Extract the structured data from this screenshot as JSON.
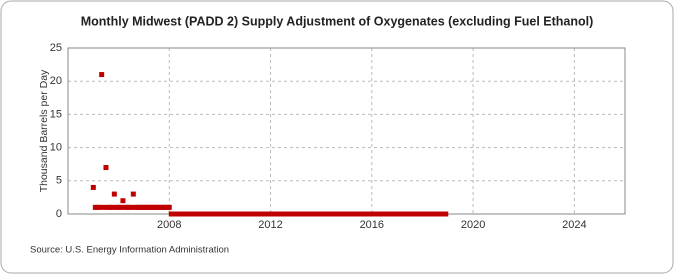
{
  "chart_data": {
    "type": "scatter",
    "title": "Monthly Midwest (PADD 2) Supply Adjustment of Oxygenates (excluding Fuel Ethanol)",
    "y_label": "Thousand Barrels per Day",
    "source": "Source: U.S. Energy Information Administration",
    "color": "#c00000",
    "grid": true,
    "xlim": [
      2004,
      2026
    ],
    "xticks": [
      2008,
      2012,
      2016,
      2020,
      2024
    ],
    "ylim": [
      0,
      25
    ],
    "yticks": [
      0,
      5,
      10,
      15,
      20,
      25
    ],
    "x": [
      2005,
      2005.08,
      2005.17,
      2005.25,
      2005.33,
      2005.42,
      2005.5,
      2005.58,
      2005.67,
      2005.75,
      2005.83,
      2005.92,
      2006,
      2006.08,
      2006.17,
      2006.25,
      2006.33,
      2006.42,
      2006.5,
      2006.58,
      2006.67,
      2006.75,
      2006.83,
      2006.92,
      2007,
      2007.08,
      2007.17,
      2007.25,
      2007.33,
      2007.42,
      2007.5,
      2007.58,
      2007.67,
      2007.75,
      2007.83,
      2007.92,
      2008,
      2008.08,
      2008.17,
      2008.25,
      2008.33,
      2008.42,
      2008.5,
      2008.58,
      2008.67,
      2008.75,
      2008.83,
      2008.92,
      2009,
      2009.08,
      2009.17,
      2009.25,
      2009.33,
      2009.42,
      2009.5,
      2009.58,
      2009.67,
      2009.75,
      2009.83,
      2009.92,
      2010,
      2010.08,
      2010.17,
      2010.25,
      2010.33,
      2010.42,
      2010.5,
      2010.58,
      2010.67,
      2010.75,
      2010.83,
      2010.92,
      2011,
      2011.08,
      2011.17,
      2011.25,
      2011.33,
      2011.42,
      2011.5,
      2011.58,
      2011.67,
      2011.75,
      2011.83,
      2011.92,
      2012,
      2012.08,
      2012.17,
      2012.25,
      2012.33,
      2012.42,
      2012.5,
      2012.58,
      2012.67,
      2012.75,
      2012.83,
      2012.92,
      2013,
      2013.08,
      2013.17,
      2013.25,
      2013.33,
      2013.42,
      2013.5,
      2013.58,
      2013.67,
      2013.75,
      2013.83,
      2013.92,
      2014,
      2014.08,
      2014.17,
      2014.25,
      2014.33,
      2014.42,
      2014.5,
      2014.58,
      2014.67,
      2014.75,
      2014.83,
      2014.92,
      2015,
      2015.08,
      2015.17,
      2015.25,
      2015.33,
      2015.42,
      2015.5,
      2015.58,
      2015.67,
      2015.75,
      2015.83,
      2015.92,
      2016,
      2016.08,
      2016.17,
      2016.25,
      2016.33,
      2016.42,
      2016.5,
      2016.58,
      2016.67,
      2016.75,
      2016.83,
      2016.92,
      2017,
      2017.08,
      2017.17,
      2017.25,
      2017.33,
      2017.42,
      2017.5,
      2017.58,
      2017.67,
      2017.75,
      2017.83,
      2017.92,
      2018,
      2018.08,
      2018.17,
      2018.25,
      2018.33,
      2018.42,
      2018.5,
      2018.58,
      2018.67,
      2018.75,
      2018.83,
      2018.92
    ],
    "values": [
      4,
      1,
      1,
      1,
      21,
      1,
      7,
      1,
      1,
      1,
      3,
      1,
      1,
      1,
      2,
      1,
      1,
      1,
      1,
      3,
      1,
      1,
      1,
      1,
      1,
      1,
      1,
      1,
      1,
      1,
      1,
      1,
      1,
      1,
      1,
      1,
      1,
      0,
      0,
      0,
      0,
      0,
      0,
      0,
      0,
      0,
      0,
      0,
      0,
      0,
      0,
      0,
      0,
      0,
      0,
      0,
      0,
      0,
      0,
      0,
      0,
      0,
      0,
      0,
      0,
      0,
      0,
      0,
      0,
      0,
      0,
      0,
      0,
      0,
      0,
      0,
      0,
      0,
      0,
      0,
      0,
      0,
      0,
      0,
      0,
      0,
      0,
      0,
      0,
      0,
      0,
      0,
      0,
      0,
      0,
      0,
      0,
      0,
      0,
      0,
      0,
      0,
      0,
      0,
      0,
      0,
      0,
      0,
      0,
      0,
      0,
      0,
      0,
      0,
      0,
      0,
      0,
      0,
      0,
      0,
      0,
      0,
      0,
      0,
      0,
      0,
      0,
      0,
      0,
      0,
      0,
      0,
      0,
      0,
      0,
      0,
      0,
      0,
      0,
      0,
      0,
      0,
      0,
      0,
      0,
      0,
      0,
      0,
      0,
      0,
      0,
      0,
      0,
      0,
      0,
      0,
      0,
      0,
      0,
      0,
      0,
      0,
      0,
      0,
      0,
      0,
      0,
      0
    ]
  }
}
